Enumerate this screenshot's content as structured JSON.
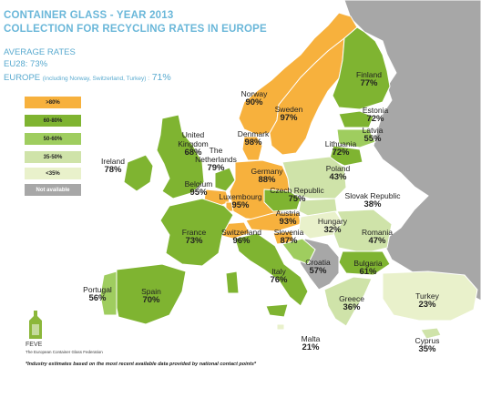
{
  "title": {
    "line1": "CONTAINER GLASS  - YEAR 2013",
    "line2": "COLLECTION FOR RECYCLING RATES IN EUROPE"
  },
  "averages": {
    "heading": "AVERAGE RATES",
    "eu28": "EU28: 73%",
    "europe_prefix": "EUROPE",
    "europe_note": "(including Norway, Switzerland, Turkey) :",
    "europe_value": "71%"
  },
  "legend": [
    {
      "label": ">80%",
      "color": "#f7b13d"
    },
    {
      "label": "60-80%",
      "color": "#7fb431"
    },
    {
      "label": "50-60%",
      "color": "#9fcd5f"
    },
    {
      "label": "35-50%",
      "color": "#cfe3a9"
    },
    {
      "label": "<35%",
      "color": "#e9f1cb"
    },
    {
      "label": "Not available",
      "color": "#a7a7a7"
    }
  ],
  "colors": {
    "over80": "#f7b13d",
    "r60_80": "#7fb431",
    "r50_60": "#9fcd5f",
    "r35_50": "#cfe3a9",
    "under35": "#e9f1cb",
    "not_available": "#a7a7a7",
    "title_blue": "#6ab7d9"
  },
  "countries": [
    {
      "name": "Norway",
      "value": "90%"
    },
    {
      "name": "Sweden",
      "value": "97%"
    },
    {
      "name": "Finland",
      "value": "77%"
    },
    {
      "name": "Estonia",
      "value": "72%"
    },
    {
      "name": "Latvia",
      "value": "55%"
    },
    {
      "name": "Lithuania",
      "value": "72%"
    },
    {
      "name": "Denmark",
      "value": "98%"
    },
    {
      "name": "United Kingdom",
      "value": "68%"
    },
    {
      "name": "Ireland",
      "value": "78%"
    },
    {
      "name": "The Netherlands",
      "value": "79%"
    },
    {
      "name": "Germany",
      "value": "88%"
    },
    {
      "name": "Poland",
      "value": "43%"
    },
    {
      "name": "Belgium",
      "value": "95%"
    },
    {
      "name": "Luxembourg",
      "value": "95%"
    },
    {
      "name": "Czech Republic",
      "value": "75%"
    },
    {
      "name": "Slovak Republic",
      "value": "38%"
    },
    {
      "name": "Austria",
      "value": "93%"
    },
    {
      "name": "France",
      "value": "73%"
    },
    {
      "name": "Switzerland",
      "value": "96%"
    },
    {
      "name": "Slovenia",
      "value": "87%"
    },
    {
      "name": "Hungary",
      "value": "32%"
    },
    {
      "name": "Romania",
      "value": "47%"
    },
    {
      "name": "Croatia",
      "value": "57%"
    },
    {
      "name": "Bulgaria",
      "value": "61%"
    },
    {
      "name": "Italy",
      "value": "76%"
    },
    {
      "name": "Portugal",
      "value": "56%"
    },
    {
      "name": "Spain",
      "value": "70%"
    },
    {
      "name": "Greece",
      "value": "36%"
    },
    {
      "name": "Turkey",
      "value": "23%"
    },
    {
      "name": "Malta",
      "value": "21%"
    },
    {
      "name": "Cyprus",
      "value": "35%"
    }
  ],
  "logo": {
    "name": "FEVE",
    "subtitle": "The European Container Glass Federation"
  },
  "footnote": "*Industry estimates based on the most recent available data provided by national contact points*"
}
